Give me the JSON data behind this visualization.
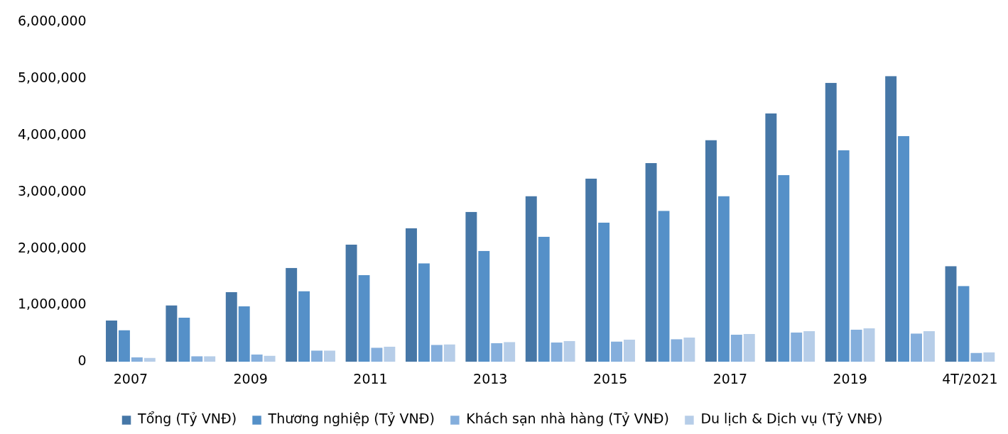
{
  "chart_data": {
    "type": "bar",
    "categories": [
      "2007",
      null,
      "2009",
      null,
      "2011",
      null,
      "2013",
      null,
      "2015",
      null,
      "2017",
      null,
      "2019",
      null,
      "4T/2021"
    ],
    "series": [
      {
        "name": "Tổng (Tỷ VNĐ)",
        "color": "#4677a7",
        "values": [
          730000,
          1000000,
          1230000,
          1660000,
          2070000,
          2360000,
          2650000,
          2930000,
          3240000,
          3510000,
          3920000,
          4390000,
          4930000,
          5050000,
          1690000
        ]
      },
      {
        "name": "Thương nghiệp (Tỷ VNĐ)",
        "color": "#5590c8",
        "values": [
          560000,
          780000,
          980000,
          1250000,
          1530000,
          1740000,
          1960000,
          2210000,
          2460000,
          2670000,
          2930000,
          3300000,
          3740000,
          3990000,
          1340000
        ]
      },
      {
        "name": "Khách sạn nhà hàng (Tỷ VNĐ)",
        "color": "#84aedc",
        "values": [
          80000,
          100000,
          130000,
          200000,
          250000,
          300000,
          330000,
          340000,
          360000,
          400000,
          480000,
          520000,
          570000,
          500000,
          160000
        ]
      },
      {
        "name": "Du lịch & Dịch vụ (Tỷ VNĐ)",
        "color": "#b6cde8",
        "values": [
          70000,
          100000,
          110000,
          200000,
          270000,
          310000,
          350000,
          370000,
          390000,
          430000,
          490000,
          540000,
          590000,
          540000,
          170000
        ]
      }
    ],
    "ylim": [
      0,
      6000000
    ],
    "yticks": [
      0,
      {
        "value": 1000000,
        "label": "1,000,000"
      },
      {
        "value": 2000000,
        "label": "2,000,000"
      },
      {
        "value": 3000000,
        "label": "3,000,000"
      },
      {
        "value": 4000000,
        "label": "4,000,000"
      },
      {
        "value": 5000000,
        "label": "5,000,000"
      },
      {
        "value": 6000000,
        "label": "6,000,000"
      }
    ],
    "grid": false,
    "legend": "bottom"
  }
}
